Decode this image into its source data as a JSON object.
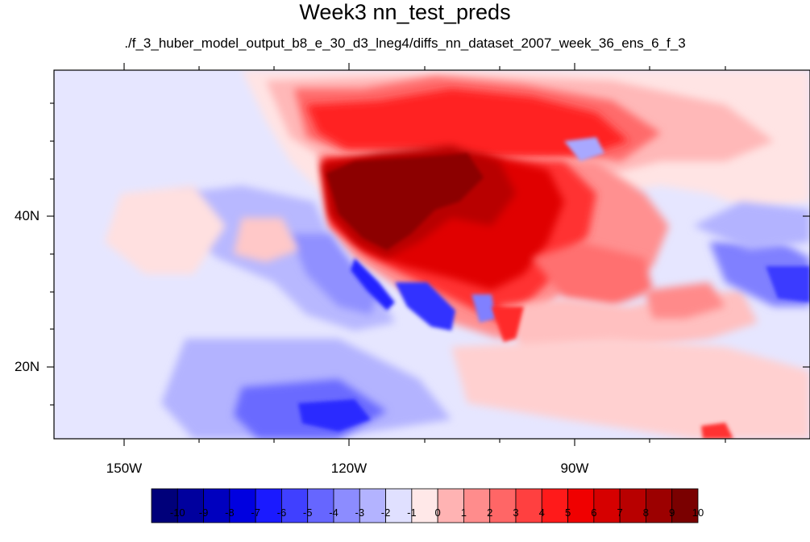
{
  "title": "Week3 nn_test_preds",
  "subtitle": "./f_3_huber_model_output_b8_e_30_d3_lneg4/diffs_nn_dataset_2007_week_36_ens_6_f_3",
  "map": {
    "lon_range": [
      -160,
      -61
    ],
    "lat_range": [
      10,
      59
    ]
  },
  "axes": {
    "x_ticks": [
      {
        "lon": -150,
        "label": "150W"
      },
      {
        "lon": -120,
        "label": "120W"
      },
      {
        "lon": -90,
        "label": "90W"
      }
    ],
    "y_ticks": [
      {
        "lat": 40,
        "label": "40N"
      },
      {
        "lat": 20,
        "label": "20N"
      }
    ]
  },
  "colorbar": {
    "labels": [
      "-10",
      "-9",
      "-8",
      "-7",
      "-6",
      "-5",
      "-4",
      "-3",
      "-2",
      "-1",
      "0",
      "1",
      "2",
      "3",
      "4",
      "5",
      "6",
      "7",
      "8",
      "9",
      "10"
    ],
    "colors": [
      "#00007a",
      "#00009e",
      "#0000bf",
      "#0000e0",
      "#1a1aff",
      "#4040ff",
      "#6666ff",
      "#8c8cff",
      "#b3b3ff",
      "#e0e0ff",
      "#ffe8e8",
      "#ffb3b3",
      "#ff8c8c",
      "#ff6666",
      "#ff4040",
      "#ff1a1a",
      "#f00000",
      "#d60000",
      "#b80000",
      "#9c0000",
      "#7a0000"
    ]
  }
}
